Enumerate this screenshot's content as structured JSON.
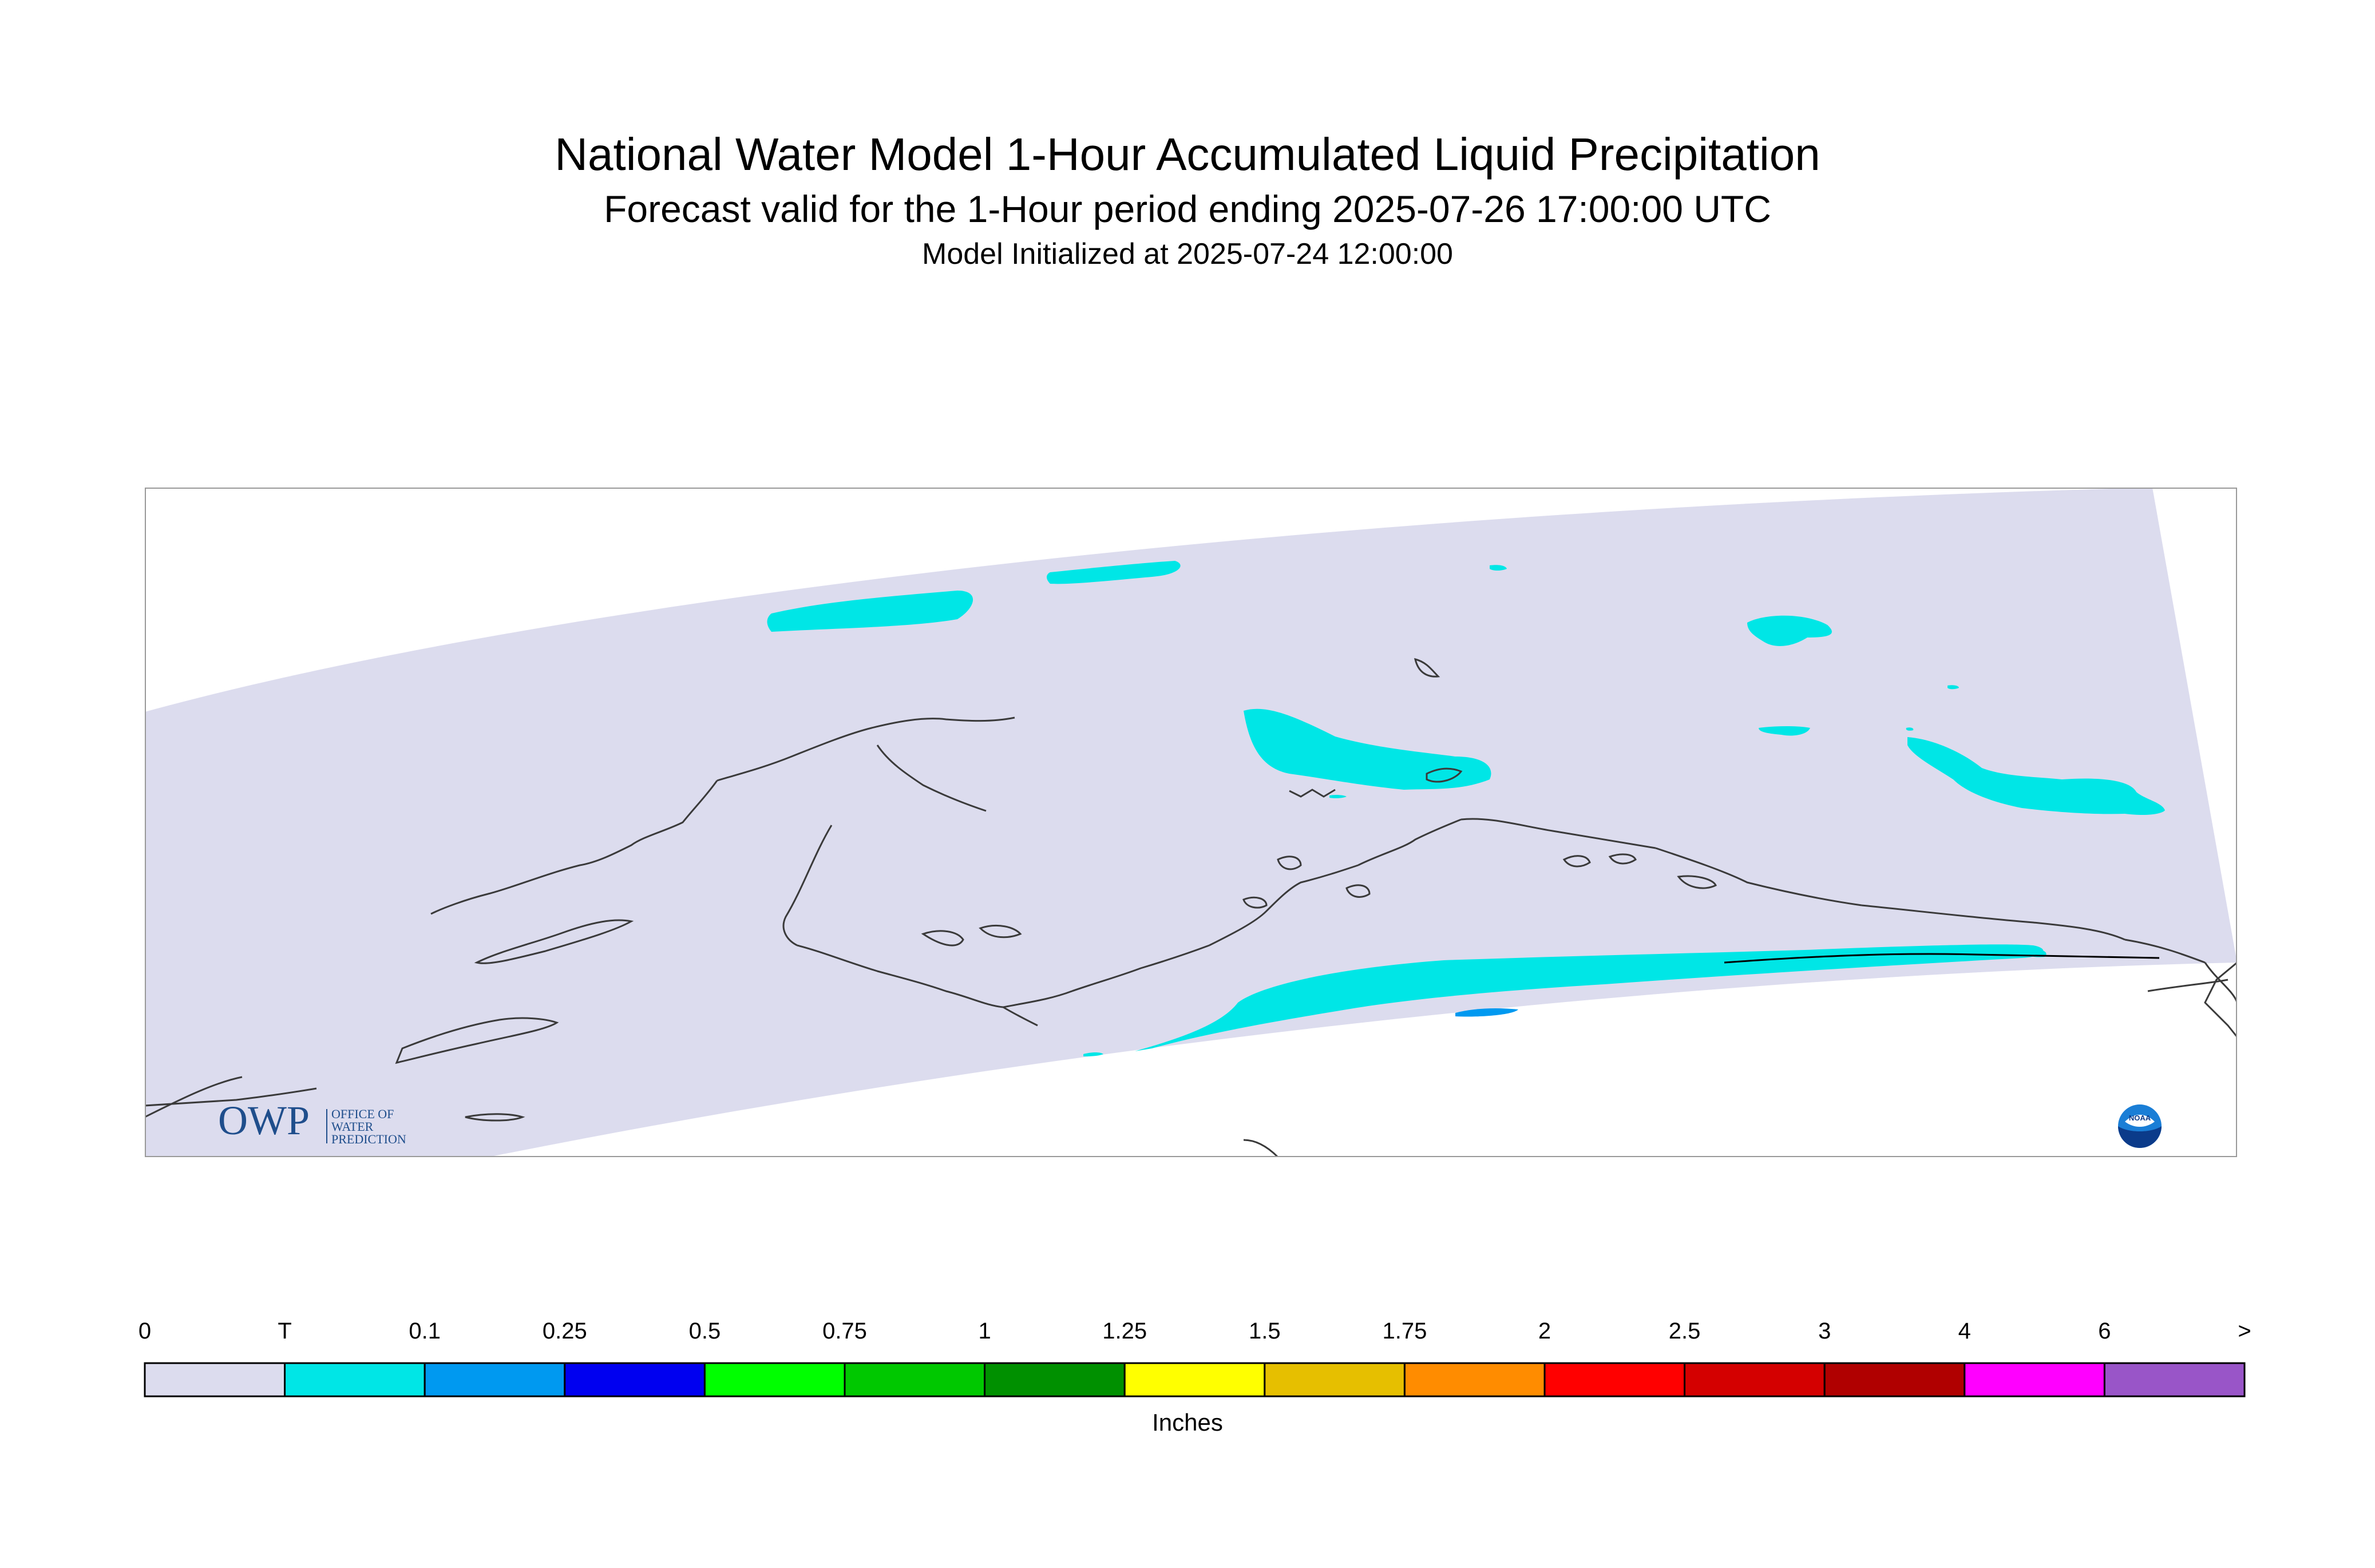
{
  "header": {
    "title": "National Water Model 1-Hour Accumulated Liquid Precipitation",
    "subtitle": "Forecast valid for the 1-Hour period ending 2025-07-26 17:00:00 UTC",
    "initialized": "Model Initialized at 2025-07-24 12:00:00"
  },
  "map": {
    "domain_fill": "#dcdcee",
    "coastline_color": "#3a3a3a",
    "frame_color": "#999999"
  },
  "logos": {
    "owp": {
      "mark": "OWP",
      "line1": "OFFICE OF",
      "line2": "WATER",
      "line3": "PREDICTION",
      "color": "#1f4e8c"
    },
    "noaa": {
      "text": "NOAA",
      "icon": "noaa-seal-icon"
    }
  },
  "legend": {
    "units": "Inches",
    "labels": [
      "0",
      "T",
      "0.1",
      "0.25",
      "0.5",
      "0.75",
      "1",
      "1.25",
      "1.5",
      "1.75",
      "2",
      "2.5",
      "3",
      "4",
      "6",
      ">"
    ],
    "colors": [
      "#dcdcee",
      "#00e6e6",
      "#0099f0",
      "#0000f0",
      "#00ff00",
      "#00c800",
      "#009000",
      "#ffff00",
      "#e6bf00",
      "#ff8c00",
      "#ff0000",
      "#d40000",
      "#b00000",
      "#ff00ff",
      "#9955c8"
    ]
  }
}
